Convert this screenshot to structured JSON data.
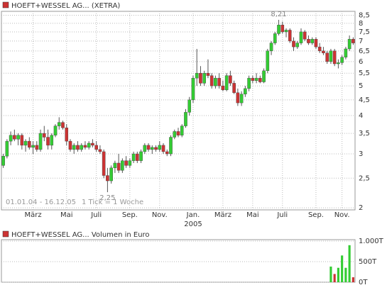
{
  "chart_data": {
    "type": "candlestick",
    "title": "HOEFT+WESSEL AG... (XETRA)",
    "period": "01.01.04 - 16.12.05",
    "tick_note": "1 Tick = 1 Woche",
    "year_label": "2005",
    "log_scale": true,
    "grid": true,
    "up_color": "#33cc33",
    "down_color": "#cc3333",
    "ylim": [
      1.97,
      8.75
    ],
    "yticks": [
      {
        "value": 2,
        "label": "2"
      },
      {
        "value": 2.5,
        "label": "2,5"
      },
      {
        "value": 3,
        "label": "3"
      },
      {
        "value": 3.5,
        "label": "3,5"
      },
      {
        "value": 4,
        "label": "4"
      },
      {
        "value": 4.5,
        "label": "4,5"
      },
      {
        "value": 5,
        "label": "5"
      },
      {
        "value": 5.5,
        "label": "5,5"
      },
      {
        "value": 6,
        "label": "6"
      },
      {
        "value": 6.5,
        "label": "6,5"
      },
      {
        "value": 7,
        "label": "7"
      },
      {
        "value": 7.5,
        "label": "7,5"
      },
      {
        "value": 8,
        "label": "8"
      },
      {
        "value": 8.5,
        "label": "8,5"
      }
    ],
    "xticks": [
      {
        "value": 8,
        "label": "März"
      },
      {
        "value": 17,
        "label": "Mai"
      },
      {
        "value": 25,
        "label": "Juli"
      },
      {
        "value": 34,
        "label": "Sep."
      },
      {
        "value": 42,
        "label": "Nov."
      },
      {
        "value": 51,
        "label": "Jan."
      },
      {
        "value": 59,
        "label": "März"
      },
      {
        "value": 67,
        "label": "Mai"
      },
      {
        "value": 75,
        "label": "Juli"
      },
      {
        "value": 84,
        "label": "Sep."
      },
      {
        "value": 91,
        "label": "Nov."
      }
    ],
    "annotations": [
      {
        "value": 8.21,
        "label": "8,21"
      },
      {
        "value": 2.25,
        "label": "2,25"
      }
    ],
    "candles": [
      [
        2.75,
        3.0,
        2.7,
        2.95
      ],
      [
        2.95,
        3.35,
        2.9,
        3.3
      ],
      [
        3.3,
        3.55,
        3.2,
        3.45
      ],
      [
        3.45,
        3.6,
        3.3,
        3.35
      ],
      [
        3.35,
        3.5,
        3.2,
        3.45
      ],
      [
        3.45,
        3.5,
        3.1,
        3.2
      ],
      [
        3.2,
        3.35,
        3.05,
        3.3
      ],
      [
        3.3,
        3.4,
        3.1,
        3.15
      ],
      [
        3.15,
        3.3,
        3.0,
        3.2
      ],
      [
        3.2,
        3.3,
        3.05,
        3.1
      ],
      [
        3.1,
        3.6,
        3.05,
        3.5
      ],
      [
        3.5,
        3.7,
        3.3,
        3.4
      ],
      [
        3.4,
        3.6,
        3.1,
        3.2
      ],
      [
        3.2,
        3.5,
        3.1,
        3.45
      ],
      [
        3.45,
        3.75,
        3.4,
        3.7
      ],
      [
        3.7,
        3.95,
        3.6,
        3.8
      ],
      [
        3.8,
        3.85,
        3.6,
        3.65
      ],
      [
        3.65,
        3.75,
        3.2,
        3.3
      ],
      [
        3.3,
        3.35,
        3.05,
        3.1
      ],
      [
        3.1,
        3.25,
        3.0,
        3.2
      ],
      [
        3.2,
        3.3,
        3.05,
        3.1
      ],
      [
        3.1,
        3.25,
        3.05,
        3.2
      ],
      [
        3.2,
        3.3,
        3.1,
        3.15
      ],
      [
        3.15,
        3.3,
        3.1,
        3.25
      ],
      [
        3.25,
        3.35,
        3.15,
        3.2
      ],
      [
        3.2,
        3.3,
        3.05,
        3.1
      ],
      [
        3.1,
        3.2,
        3.0,
        3.05
      ],
      [
        3.05,
        3.1,
        2.5,
        2.55
      ],
      [
        2.55,
        2.7,
        2.25,
        2.45
      ],
      [
        2.45,
        2.75,
        2.4,
        2.7
      ],
      [
        2.7,
        2.85,
        2.6,
        2.8
      ],
      [
        2.8,
        3.0,
        2.6,
        2.65
      ],
      [
        2.65,
        2.9,
        2.6,
        2.85
      ],
      [
        2.85,
        2.95,
        2.7,
        2.75
      ],
      [
        2.75,
        2.9,
        2.7,
        2.85
      ],
      [
        2.85,
        3.05,
        2.8,
        3.0
      ],
      [
        3.0,
        3.05,
        2.8,
        2.85
      ],
      [
        2.85,
        3.1,
        2.8,
        3.05
      ],
      [
        3.05,
        3.25,
        3.0,
        3.2
      ],
      [
        3.2,
        3.25,
        3.05,
        3.1
      ],
      [
        3.1,
        3.2,
        3.0,
        3.15
      ],
      [
        3.15,
        3.2,
        3.05,
        3.1
      ],
      [
        3.1,
        3.3,
        3.05,
        3.2
      ],
      [
        3.2,
        3.25,
        3.0,
        3.05
      ],
      [
        3.05,
        3.1,
        2.95,
        3.0
      ],
      [
        3.0,
        3.45,
        2.95,
        3.4
      ],
      [
        3.4,
        3.6,
        3.35,
        3.55
      ],
      [
        3.55,
        3.65,
        3.4,
        3.45
      ],
      [
        3.45,
        3.75,
        3.4,
        3.7
      ],
      [
        3.7,
        4.2,
        3.65,
        4.1
      ],
      [
        4.1,
        4.6,
        4.0,
        4.5
      ],
      [
        4.5,
        5.4,
        4.4,
        5.3
      ],
      [
        5.3,
        6.6,
        5.0,
        5.5
      ],
      [
        5.5,
        5.8,
        5.0,
        5.1
      ],
      [
        5.1,
        5.6,
        5.0,
        5.5
      ],
      [
        5.5,
        6.1,
        5.3,
        5.4
      ],
      [
        5.4,
        5.5,
        4.9,
        5.0
      ],
      [
        5.0,
        5.4,
        4.9,
        5.3
      ],
      [
        5.3,
        5.5,
        4.9,
        5.0
      ],
      [
        5.0,
        5.2,
        4.8,
        4.85
      ],
      [
        4.85,
        5.5,
        4.8,
        5.4
      ],
      [
        5.4,
        5.6,
        5.0,
        5.1
      ],
      [
        5.1,
        5.2,
        4.7,
        4.75
      ],
      [
        4.75,
        4.9,
        4.3,
        4.4
      ],
      [
        4.4,
        4.8,
        4.3,
        4.7
      ],
      [
        4.7,
        5.0,
        4.6,
        4.9
      ],
      [
        4.9,
        5.4,
        4.8,
        5.3
      ],
      [
        5.3,
        5.4,
        5.1,
        5.2
      ],
      [
        5.2,
        5.5,
        5.1,
        5.3
      ],
      [
        5.3,
        5.4,
        5.1,
        5.15
      ],
      [
        5.15,
        5.7,
        5.1,
        5.6
      ],
      [
        5.6,
        6.6,
        5.5,
        6.5
      ],
      [
        6.5,
        7.0,
        6.3,
        6.9
      ],
      [
        6.9,
        7.5,
        6.8,
        7.4
      ],
      [
        7.4,
        8.21,
        7.3,
        7.9
      ],
      [
        7.9,
        8.1,
        7.4,
        7.5
      ],
      [
        7.5,
        7.7,
        7.2,
        7.6
      ],
      [
        7.6,
        7.7,
        6.9,
        7.0
      ],
      [
        7.0,
        7.2,
        6.5,
        6.7
      ],
      [
        6.7,
        7.0,
        6.6,
        6.9
      ],
      [
        6.9,
        7.7,
        6.8,
        7.5
      ],
      [
        7.5,
        7.6,
        7.0,
        7.1
      ],
      [
        7.1,
        7.3,
        6.8,
        6.9
      ],
      [
        6.9,
        7.2,
        6.8,
        7.1
      ],
      [
        7.1,
        7.2,
        6.6,
        6.7
      ],
      [
        6.7,
        6.9,
        6.4,
        6.5
      ],
      [
        6.5,
        6.7,
        6.3,
        6.4
      ],
      [
        6.4,
        6.5,
        5.9,
        6.0
      ],
      [
        6.0,
        6.6,
        5.9,
        6.5
      ],
      [
        6.5,
        6.6,
        5.8,
        5.9
      ],
      [
        5.9,
        6.1,
        5.7,
        5.95
      ],
      [
        5.95,
        6.3,
        5.85,
        6.2
      ],
      [
        6.2,
        6.7,
        6.1,
        6.6
      ],
      [
        6.6,
        7.3,
        6.5,
        7.1
      ],
      [
        7.1,
        7.2,
        6.8,
        6.9
      ]
    ],
    "volume": {
      "title": "HOEFT+WESSEL AG... Volumen in Euro",
      "ylim": [
        0,
        1000
      ],
      "yticks": [
        {
          "value": 1000,
          "label": "1.000T"
        },
        {
          "value": 500,
          "label": "500T"
        },
        {
          "value": 0,
          "label": "0T"
        }
      ],
      "values": [
        0,
        0,
        0,
        0,
        0,
        0,
        0,
        0,
        0,
        0,
        0,
        0,
        0,
        0,
        0,
        0,
        0,
        0,
        0,
        0,
        0,
        0,
        0,
        0,
        0,
        0,
        0,
        0,
        0,
        0,
        0,
        0,
        0,
        0,
        0,
        0,
        0,
        0,
        0,
        0,
        0,
        0,
        0,
        0,
        0,
        0,
        0,
        0,
        0,
        0,
        0,
        0,
        0,
        0,
        0,
        0,
        0,
        0,
        0,
        0,
        0,
        0,
        0,
        0,
        0,
        0,
        0,
        0,
        0,
        0,
        0,
        0,
        0,
        0,
        0,
        0,
        0,
        0,
        0,
        0,
        0,
        0,
        0,
        0,
        0,
        0,
        0,
        0,
        380,
        200,
        350,
        650,
        350,
        900,
        120
      ]
    }
  }
}
